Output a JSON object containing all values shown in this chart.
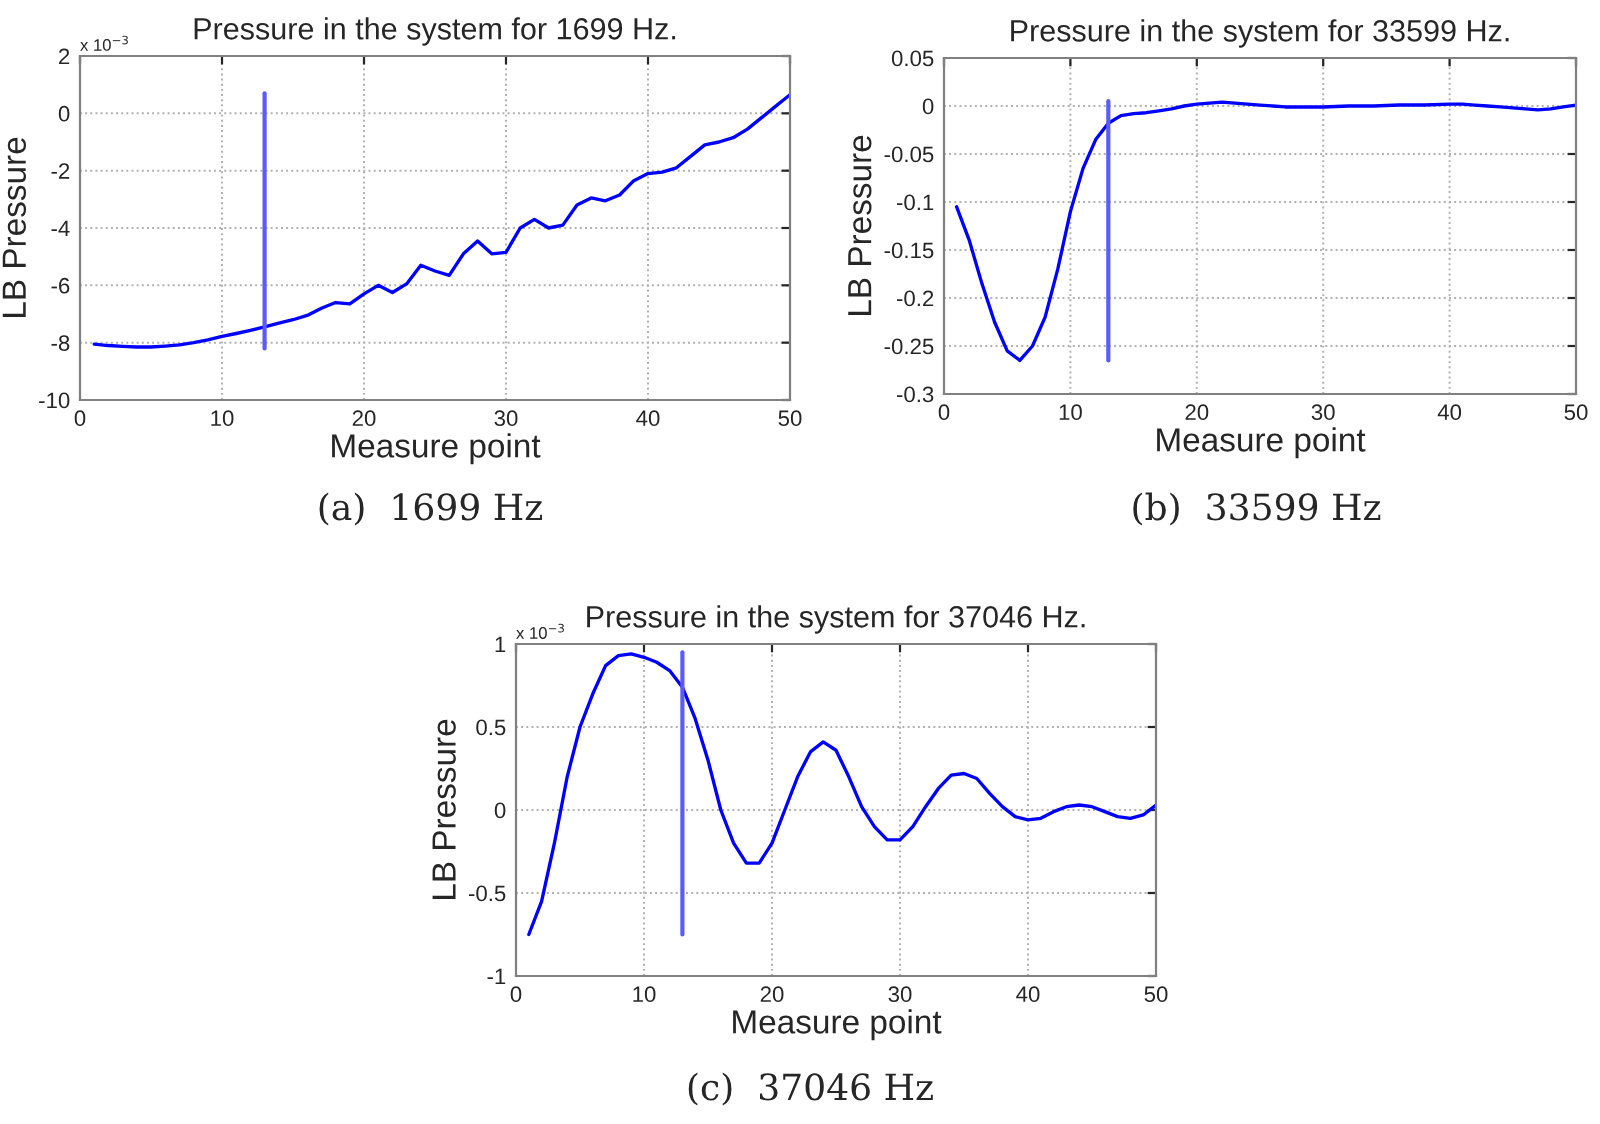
{
  "chart_data": [
    {
      "type": "line",
      "title": "Pressure in the system for 1699 Hz.",
      "xlabel": "Measure point",
      "ylabel": "LB Pressure",
      "annotations": [
        "x 10$^{−3}$",
        "(a)  1699 Hz"
      ],
      "xlim": [
        0,
        50
      ],
      "xticks": [
        0,
        10,
        20,
        30,
        40,
        50
      ],
      "ylim": [
        -10,
        2
      ],
      "yticks": [
        -10,
        -8,
        -6,
        -4,
        -2,
        0,
        2
      ],
      "grid": true,
      "line_style": "solid",
      "marker": "none",
      "series": [
        {
          "color": "#0000ff",
          "x": [
            1,
            2,
            3,
            4,
            5,
            6,
            7,
            8,
            9,
            10,
            11,
            12,
            13,
            14,
            15,
            16,
            17,
            18,
            19,
            20,
            21,
            22,
            23,
            24,
            25,
            26,
            27,
            28,
            29,
            30,
            31,
            32,
            33,
            34,
            35,
            36,
            37,
            38,
            39,
            40,
            41,
            42,
            43,
            44,
            45,
            46,
            47,
            48,
            49,
            50
          ],
          "values": [
            -8.05,
            -8.1,
            -8.13,
            -8.15,
            -8.15,
            -8.12,
            -8.08,
            -8.0,
            -7.9,
            -7.78,
            -7.68,
            -7.57,
            -7.45,
            -7.32,
            -7.2,
            -7.05,
            -6.8,
            -6.6,
            -6.65,
            -6.3,
            -6.0,
            -6.25,
            -5.95,
            -5.3,
            -5.5,
            -5.65,
            -4.9,
            -4.45,
            -4.9,
            -4.85,
            -4.0,
            -3.7,
            -4.0,
            -3.9,
            -3.2,
            -2.95,
            -3.05,
            -2.85,
            -2.35,
            -2.1,
            -2.05,
            -1.9,
            -1.5,
            -1.1,
            -1.0,
            -0.85,
            -0.55,
            -0.15,
            0.25,
            0.65
          ]
        },
        {
          "color": "#5a5aff",
          "x": [
            13,
            13
          ],
          "values": [
            -8.2,
            0.7
          ]
        }
      ]
    },
    {
      "type": "line",
      "title": "Pressure in the system for 33599 Hz.",
      "xlabel": "Measure point",
      "ylabel": "LB Pressure",
      "annotations": [
        "(b)  33599 Hz"
      ],
      "xlim": [
        0,
        50
      ],
      "xticks": [
        0,
        10,
        20,
        30,
        40,
        50
      ],
      "ylim": [
        -0.3,
        0.05
      ],
      "yticks": [
        -0.3,
        -0.25,
        -0.2,
        -0.15,
        -0.1,
        -0.05,
        0,
        0.05
      ],
      "grid": true,
      "line_style": "solid",
      "marker": "none",
      "series": [
        {
          "color": "#0000ff",
          "x": [
            1,
            2,
            3,
            4,
            5,
            6,
            7,
            8,
            9,
            10,
            11,
            12,
            13,
            14,
            15,
            16,
            17,
            18,
            19,
            20,
            21,
            22,
            23,
            24,
            25,
            26,
            27,
            28,
            30,
            32,
            34,
            36,
            38,
            40,
            41,
            42,
            43,
            44,
            45,
            46,
            47,
            48,
            49,
            50
          ],
          "values": [
            -0.105,
            -0.14,
            -0.185,
            -0.225,
            -0.255,
            -0.265,
            -0.25,
            -0.22,
            -0.17,
            -0.11,
            -0.065,
            -0.035,
            -0.018,
            -0.01,
            -0.008,
            -0.007,
            -0.005,
            -0.003,
            0.0,
            0.002,
            0.003,
            0.004,
            0.003,
            0.002,
            0.001,
            0.0,
            -0.001,
            -0.001,
            -0.001,
            0.0,
            0.0,
            0.001,
            0.001,
            0.002,
            0.002,
            0.001,
            0.0,
            -0.001,
            -0.002,
            -0.003,
            -0.004,
            -0.003,
            -0.001,
            0.001
          ]
        },
        {
          "color": "#5a5aff",
          "x": [
            13,
            13
          ],
          "values": [
            -0.265,
            0.005
          ]
        }
      ]
    },
    {
      "type": "line",
      "title": "Pressure in the system for 37046 Hz.",
      "xlabel": "Measure point",
      "ylabel": "LB Pressure",
      "annotations": [
        "x 10$^{−3}$",
        "(c)  37046 Hz"
      ],
      "xlim": [
        0,
        50
      ],
      "xticks": [
        0,
        10,
        20,
        30,
        40,
        50
      ],
      "ylim": [
        -1,
        1
      ],
      "yticks": [
        -1,
        -0.5,
        0,
        0.5,
        1
      ],
      "grid": true,
      "line_style": "solid",
      "marker": "none",
      "series": [
        {
          "color": "#0000ff",
          "x": [
            1,
            2,
            3,
            4,
            5,
            6,
            7,
            8,
            9,
            10,
            11,
            12,
            13,
            14,
            15,
            16,
            17,
            18,
            19,
            20,
            21,
            22,
            23,
            24,
            25,
            26,
            27,
            28,
            29,
            30,
            31,
            32,
            33,
            34,
            35,
            36,
            37,
            38,
            39,
            40,
            41,
            42,
            43,
            44,
            45,
            46,
            47,
            48,
            49,
            50
          ],
          "values": [
            -0.75,
            -0.55,
            -0.2,
            0.2,
            0.5,
            0.7,
            0.87,
            0.93,
            0.94,
            0.92,
            0.89,
            0.84,
            0.74,
            0.55,
            0.3,
            0.0,
            -0.2,
            -0.32,
            -0.32,
            -0.2,
            0.0,
            0.2,
            0.35,
            0.41,
            0.36,
            0.2,
            0.02,
            -0.1,
            -0.18,
            -0.18,
            -0.1,
            0.02,
            0.13,
            0.21,
            0.22,
            0.19,
            0.1,
            0.02,
            -0.04,
            -0.06,
            -0.05,
            -0.01,
            0.02,
            0.03,
            0.02,
            -0.01,
            -0.04,
            -0.05,
            -0.03,
            0.03
          ]
        },
        {
          "color": "#5a5aff",
          "x": [
            13,
            13
          ],
          "values": [
            -0.75,
            0.95
          ]
        }
      ]
    }
  ]
}
